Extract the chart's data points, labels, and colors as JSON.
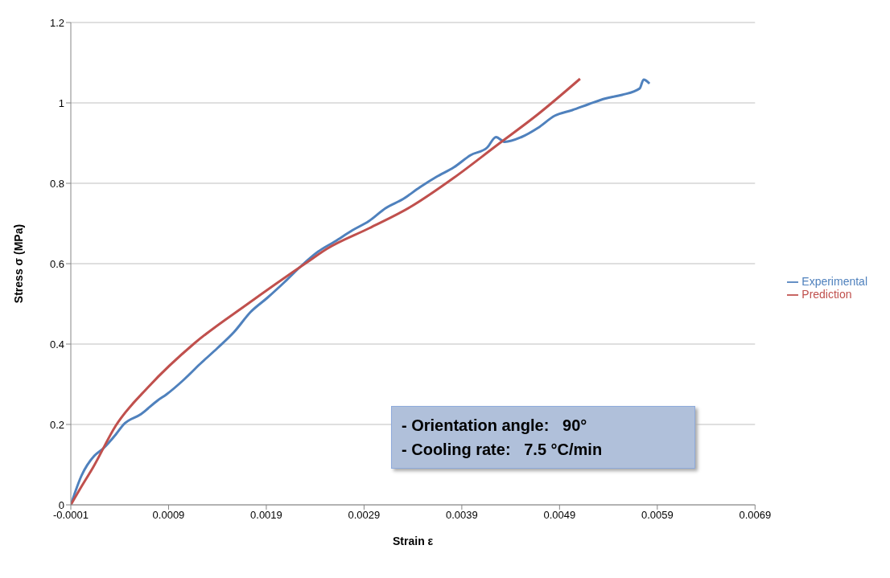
{
  "chart_data": {
    "type": "line",
    "xlabel": "Strain ε",
    "ylabel": "Stress σ  (MPa)",
    "xlim": [
      -0.0001,
      0.0069
    ],
    "xticks": [
      -0.0001,
      0.0009,
      0.0019,
      0.0029,
      0.0039,
      0.0049,
      0.0059,
      0.0069
    ],
    "ylim": [
      0,
      1.2
    ],
    "yticks": [
      0,
      0.2,
      0.4,
      0.6,
      0.8,
      1,
      1.2
    ],
    "grid": "y",
    "legend": "right",
    "marker": "none",
    "line_style": "solid",
    "annotations": [
      "- Orientation angle:   90°",
      "- Cooling rate:   7.5 °C/min"
    ],
    "series": [
      {
        "name": "Experimental",
        "color": "#4f81bd",
        "x": [
          -0.0001,
          1e-05,
          0.00014,
          0.00023,
          0.00036,
          0.00044,
          0.00062,
          0.00079,
          0.00088,
          0.00105,
          0.00122,
          0.0014,
          0.00157,
          0.00174,
          0.00191,
          0.00209,
          0.00226,
          0.00243,
          0.0026,
          0.00278,
          0.00295,
          0.00312,
          0.0033,
          0.00347,
          0.00364,
          0.00382,
          0.00399,
          0.00416,
          0.00425,
          0.00434,
          0.00451,
          0.00468,
          0.00485,
          0.00503,
          0.0052,
          0.00537,
          0.00554,
          0.00572,
          0.00576,
          0.00582
        ],
        "values": [
          0,
          0.073,
          0.122,
          0.14,
          0.175,
          0.2,
          0.226,
          0.26,
          0.275,
          0.31,
          0.35,
          0.39,
          0.43,
          0.48,
          0.515,
          0.555,
          0.595,
          0.63,
          0.655,
          0.683,
          0.706,
          0.738,
          0.761,
          0.79,
          0.816,
          0.84,
          0.87,
          0.889,
          0.915,
          0.903,
          0.915,
          0.938,
          0.968,
          0.982,
          0.997,
          1.011,
          1.02,
          1.036,
          1.058,
          1.048
        ]
      },
      {
        "name": "Prediction",
        "color": "#c0504d",
        "x": [
          -0.0001,
          1.24e-05,
          0.000125,
          0.00036,
          0.0007,
          0.00116,
          0.00171,
          0.00232,
          0.00252,
          0.00295,
          0.00338,
          0.00382,
          0.00425,
          0.00468,
          0.00511
        ],
        "values": [
          0,
          0.047,
          0.092,
          0.197,
          0.295,
          0.401,
          0.5,
          0.604,
          0.637,
          0.688,
          0.742,
          0.814,
          0.893,
          0.972,
          1.06
        ]
      }
    ]
  }
}
